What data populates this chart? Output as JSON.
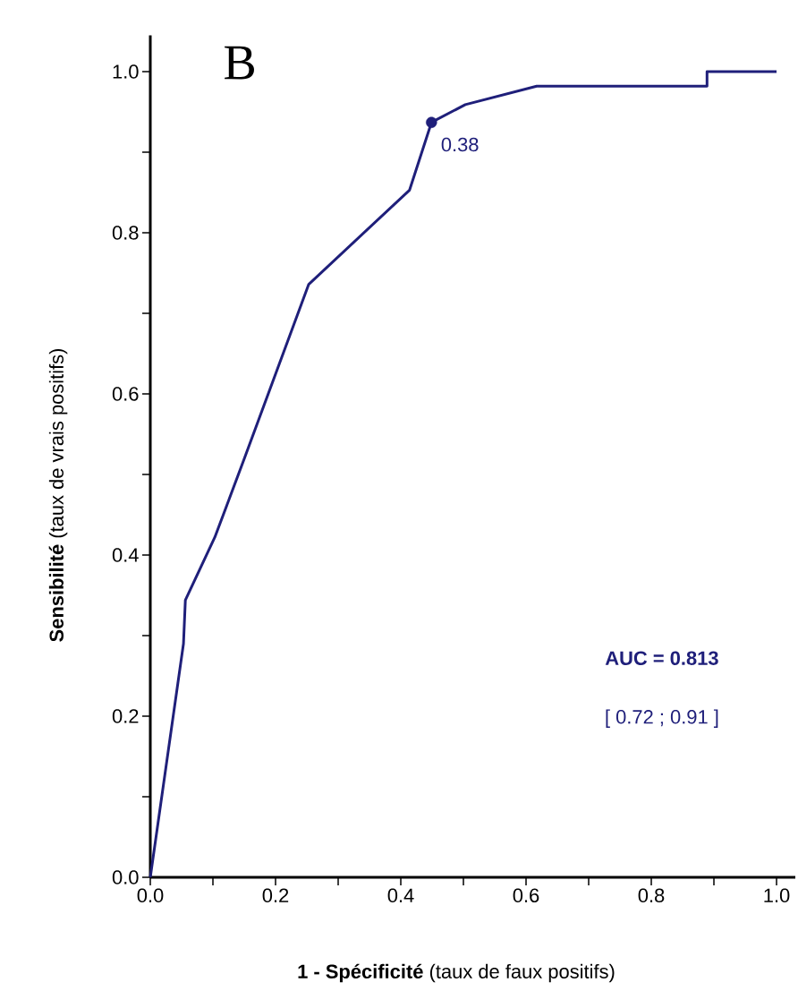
{
  "chart_data": {
    "type": "line",
    "xlabel": "**1 - Spécificité** (taux de faux positifs)",
    "ylabel": "**Sensibilité** (taux de vrais positifs)",
    "xlim": [
      0,
      1.03
    ],
    "ylim": [
      0,
      1.045
    ],
    "xticks": [
      {
        "value": 0,
        "label": "0.0"
      },
      {
        "value": 0.1,
        "label": null
      },
      0.2,
      {
        "value": 0.3,
        "label": null
      },
      0.4,
      {
        "value": 0.5,
        "label": null
      },
      0.6,
      {
        "value": 0.7,
        "label": null
      },
      0.8,
      {
        "value": 0.9,
        "label": null
      },
      {
        "value": 1,
        "label": "1.0"
      }
    ],
    "yticks": [
      {
        "value": 0,
        "label": "0.0"
      },
      {
        "value": 0.1,
        "label": null
      },
      0.2,
      {
        "value": 0.3,
        "label": null
      },
      0.4,
      {
        "value": 0.5,
        "label": null
      },
      0.6,
      {
        "value": 0.7,
        "label": null
      },
      0.8,
      {
        "value": 0.9,
        "label": null
      },
      {
        "value": 1,
        "label": "1.0"
      }
    ],
    "grid": false,
    "series": [
      {
        "color": "#1f1f7a",
        "x": [
          0,
          0.053,
          0.056,
          0.103,
          0.146,
          0.253,
          0.414,
          0.449,
          0.503,
          0.617,
          0.889,
          0.889,
          1.0
        ],
        "values": [
          0,
          0.29,
          0.344,
          0.422,
          0.511,
          0.736,
          0.853,
          0.937,
          0.959,
          0.982,
          0.982,
          1.0,
          1.0
        ]
      },
      {
        "type": "scatter",
        "color": "#1f1f7a",
        "marker": "circle",
        "x": [
          0.449
        ],
        "values": [
          0.937
        ]
      }
    ],
    "annotations": [
      "B",
      {
        "text": "0.38",
        "x": 0.449,
        "y": 0.937
      },
      "AUC = 0.813",
      "[ 0.72 ; 0.91 ]"
    ]
  }
}
